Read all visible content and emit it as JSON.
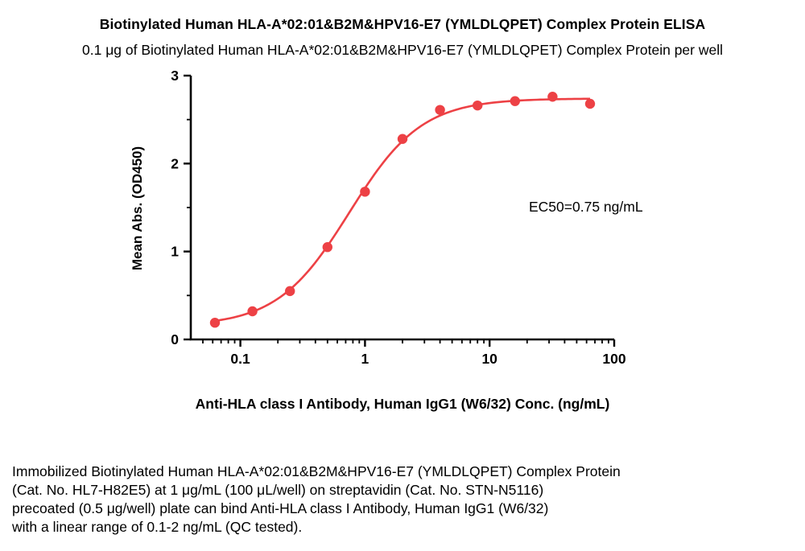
{
  "header": {
    "title": "Biotinylated Human HLA-A*02:01&B2M&HPV16-E7 (YMLDLQPET) Complex Protein ELISA",
    "subtitle": "0.1 μg of Biotinylated Human HLA-A*02:01&B2M&HPV16-E7 (YMLDLQPET) Complex Protein per well"
  },
  "chart_data": {
    "type": "scatter",
    "x_scale": "log",
    "x": [
      0.0625,
      0.125,
      0.25,
      0.5,
      1,
      2,
      4,
      8,
      16,
      32,
      64
    ],
    "y": [
      0.19,
      0.32,
      0.55,
      1.05,
      1.68,
      2.28,
      2.61,
      2.66,
      2.71,
      2.76,
      2.68
    ],
    "title": "",
    "xlabel": "Anti-HLA class I Antibody, Human IgG1 (W6/32) Conc. (ng/mL)",
    "ylabel": "Mean Abs. (OD450)",
    "xlim": [
      0.04,
      100
    ],
    "ylim": [
      0,
      3
    ],
    "x_ticks": [
      0.1,
      1,
      10,
      100
    ],
    "x_tick_labels": [
      "0.1",
      "1",
      "10",
      "100"
    ],
    "y_ticks": [
      0,
      1,
      2,
      3
    ],
    "y_tick_labels": [
      "0",
      "1",
      "2",
      "3"
    ],
    "y_minor_ticks": [
      0.5,
      1.5,
      2.5
    ],
    "grid": false,
    "legend": "none",
    "annotation": "EC50=0.75 ng/mL",
    "marker_color": "#ED4145",
    "line_color": "#ED4145",
    "axis_color": "#000000",
    "fit": {
      "model": "4PL",
      "bottom": 0.15,
      "top": 2.74,
      "ec50": 0.75,
      "hill": 1.5
    }
  },
  "caption": {
    "lines": [
      "Immobilized Biotinylated Human HLA-A*02:01&B2M&HPV16-E7 (YMLDLQPET) Complex Protein",
      "(Cat. No. HL7-H82E5) at 1 μg/mL (100 μL/well) on streptavidin (Cat. No. STN-N5116)",
      "precoated (0.5 μg/well) plate can bind Anti-HLA class I Antibody, Human IgG1 (W6/32)",
      "with a linear range of 0.1-2 ng/mL (QC tested)."
    ]
  }
}
